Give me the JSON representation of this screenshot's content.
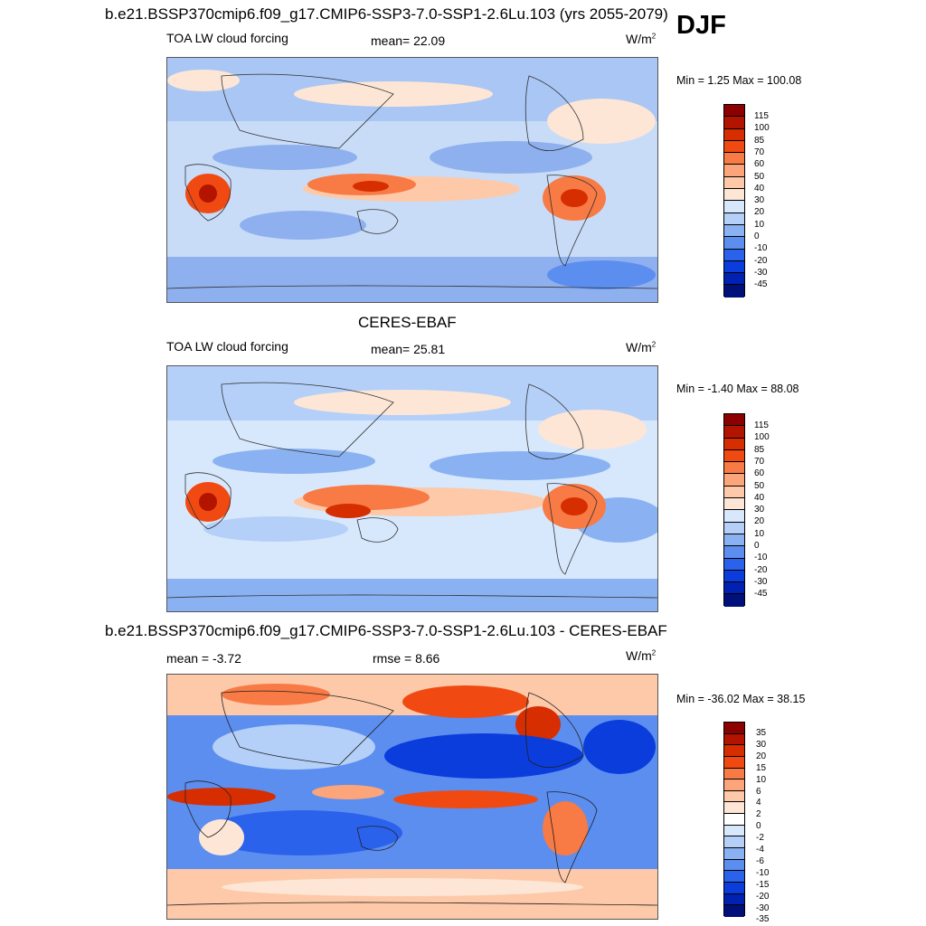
{
  "season": "DJF",
  "palettes": {
    "abs": [
      "#8c0000",
      "#b31400",
      "#d62e00",
      "#f04a12",
      "#f87a44",
      "#fca47a",
      "#fdc9a8",
      "#fde6d6",
      "#d8e8fc",
      "#b4d0f8",
      "#8ab2f2",
      "#5c8ef0",
      "#2a62ec",
      "#0a3ddc",
      "#0021b2",
      "#00107a"
    ],
    "diff": [
      "#8c0000",
      "#b31400",
      "#d62e00",
      "#f04a12",
      "#f87a44",
      "#fca47a",
      "#fdc9a8",
      "#fde6d6",
      "#ffffff",
      "#d8e8fc",
      "#b4d0f8",
      "#8ab2f2",
      "#5c8ef0",
      "#2a62ec",
      "#0a3ddc",
      "#0021b2",
      "#00107a"
    ]
  },
  "panels": [
    {
      "title": "b.e21.BSSP370cmip6.f09_g17.CMIP6-SSP3-7.0-SSP1-2.6Lu.103 (yrs 2055-2079)",
      "left_label": "TOA LW cloud forcing",
      "stat_label": "mean=  22.09",
      "units": "W/m",
      "units_sup": "2",
      "minmax": "Min =   1.25 Max = 100.08",
      "levels": [
        "115",
        "100",
        "85",
        "70",
        "60",
        "50",
        "40",
        "30",
        "20",
        "10",
        "0",
        "-10",
        "-20",
        "-30",
        "-45"
      ]
    },
    {
      "title": "CERES-EBAF",
      "left_label": "TOA LW cloud forcing",
      "stat_label": "mean=  25.81",
      "units": "W/m",
      "units_sup": "2",
      "minmax": "Min =  -1.40 Max =  88.08",
      "levels": [
        "115",
        "100",
        "85",
        "70",
        "60",
        "50",
        "40",
        "30",
        "20",
        "10",
        "0",
        "-10",
        "-20",
        "-30",
        "-45"
      ]
    },
    {
      "title": "b.e21.BSSP370cmip6.f09_g17.CMIP6-SSP3-7.0-SSP1-2.6Lu.103 - CERES-EBAF",
      "left_label": "mean =  -3.72",
      "stat_label": "rmse =   8.66",
      "units": "W/m",
      "units_sup": "2",
      "minmax": "Min = -36.02 Max =  38.15",
      "levels": [
        "35",
        "30",
        "20",
        "15",
        "10",
        "6",
        "4",
        "2",
        "0",
        "-2",
        "-4",
        "-6",
        "-10",
        "-15",
        "-20",
        "-30",
        "-35"
      ]
    }
  ]
}
